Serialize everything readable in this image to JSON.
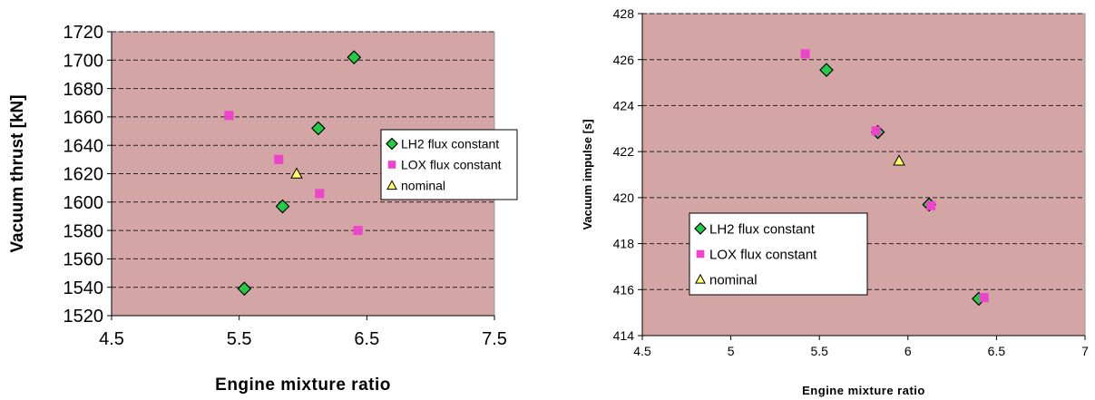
{
  "colors": {
    "plot_bg": "#d4a5a5",
    "lh2": "#22cc44",
    "lox": "#ee44cc",
    "nominal": "#ffff66",
    "grid": "#222222"
  },
  "chart_data": [
    {
      "type": "scatter",
      "title": "",
      "xlabel": "Engine mixture ratio",
      "ylabel": "Vacuum thrust [kN]",
      "xlim": [
        4.5,
        7.5
      ],
      "ylim": [
        1520,
        1720
      ],
      "xticks": [
        "4.5",
        "5.5",
        "6.5",
        "7.5"
      ],
      "yticks": [
        "1520",
        "1540",
        "1560",
        "1580",
        "1600",
        "1620",
        "1640",
        "1660",
        "1680",
        "1700",
        "1720"
      ],
      "grid": "horizontal dashed",
      "legend_position": "middle-right",
      "series": [
        {
          "name": "LH2 flux constant",
          "marker": "diamond",
          "color": "#22cc44",
          "points": [
            [
              5.54,
              1539
            ],
            [
              5.84,
              1597
            ],
            [
              6.12,
              1652
            ],
            [
              6.4,
              1702
            ]
          ]
        },
        {
          "name": "LOX flux constant",
          "marker": "square",
          "color": "#ee44cc",
          "points": [
            [
              5.42,
              1661
            ],
            [
              5.81,
              1630
            ],
            [
              6.13,
              1606
            ],
            [
              6.43,
              1580
            ]
          ]
        },
        {
          "name": "nominal",
          "marker": "triangle",
          "color": "#ffff66",
          "points": [
            [
              5.95,
              1620
            ]
          ]
        }
      ]
    },
    {
      "type": "scatter",
      "title": "",
      "xlabel": "Engine mixture ratio",
      "ylabel": "Vacuum impulse [s]",
      "xlim": [
        4.5,
        7
      ],
      "ylim": [
        414,
        428
      ],
      "xticks": [
        "4.5",
        "5",
        "5.5",
        "6",
        "6.5",
        "7"
      ],
      "yticks": [
        "414",
        "416",
        "418",
        "420",
        "422",
        "424",
        "426",
        "428"
      ],
      "grid": "horizontal dashed",
      "legend_position": "bottom-left",
      "series": [
        {
          "name": "LH2 flux constant",
          "marker": "diamond",
          "color": "#22cc44",
          "points": [
            [
              5.54,
              425.55
            ],
            [
              5.83,
              422.85
            ],
            [
              6.12,
              419.7
            ],
            [
              6.4,
              415.6
            ]
          ]
        },
        {
          "name": "LOX flux constant",
          "marker": "square",
          "color": "#ee44cc",
          "points": [
            [
              5.42,
              426.25
            ],
            [
              5.82,
              422.9
            ],
            [
              6.13,
              419.65
            ],
            [
              6.43,
              415.65
            ]
          ]
        },
        {
          "name": "nominal",
          "marker": "triangle",
          "color": "#ffff66",
          "points": [
            [
              5.95,
              421.6
            ]
          ]
        }
      ]
    }
  ]
}
